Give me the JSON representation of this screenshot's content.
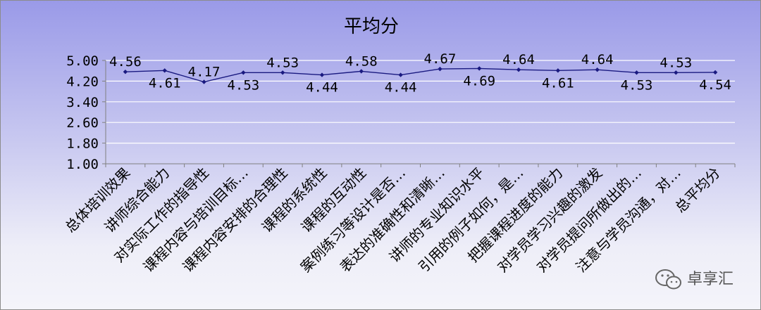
{
  "chart_data": {
    "type": "line",
    "title": "平均分",
    "xlabel": "",
    "ylabel": "",
    "ylim": [
      1.0,
      5.0
    ],
    "yticks": [
      "5.00",
      "4.20",
      "3.40",
      "2.60",
      "1.80",
      "1.00"
    ],
    "ytick_values": [
      5.0,
      4.2,
      3.4,
      2.6,
      1.8,
      1.0
    ],
    "grid": true,
    "legend": "none",
    "line_color": "#1a1a80",
    "categories": [
      "总体培训效果",
      "讲师综合能力",
      "对实际工作的指导性",
      "课程内容与培训目标…",
      "课程内容安排的合理性",
      "课程的系统性",
      "课程的互动性",
      "案例练习等设计是否…",
      "表达的准确性和清晰…",
      "讲师的专业知识水平",
      "引用的例子如何，是…",
      "把握课程进度的能力",
      "对学员学习兴趣的激发",
      "对学员提问所做出的…",
      "注意与学员沟通，对…",
      "总平均分"
    ],
    "values": [
      4.56,
      4.61,
      4.17,
      4.53,
      4.53,
      4.44,
      4.58,
      4.44,
      4.67,
      4.69,
      4.64,
      4.61,
      4.64,
      4.53,
      4.53,
      4.54
    ],
    "data_labels": [
      "4.56",
      "4.61",
      "4.17",
      "4.53",
      "4.53",
      "4.44",
      "4.58",
      "4.44",
      "4.67",
      "4.69",
      "4.64",
      "4.61",
      "4.64",
      "4.53",
      "4.53",
      "4.54"
    ],
    "label_side": [
      "above",
      "below",
      "above",
      "below",
      "above",
      "below",
      "above",
      "below",
      "above",
      "below",
      "above",
      "below",
      "above",
      "below",
      "above",
      "below"
    ]
  },
  "watermark": {
    "text": "卓享汇",
    "icon": "wechat-icon"
  }
}
